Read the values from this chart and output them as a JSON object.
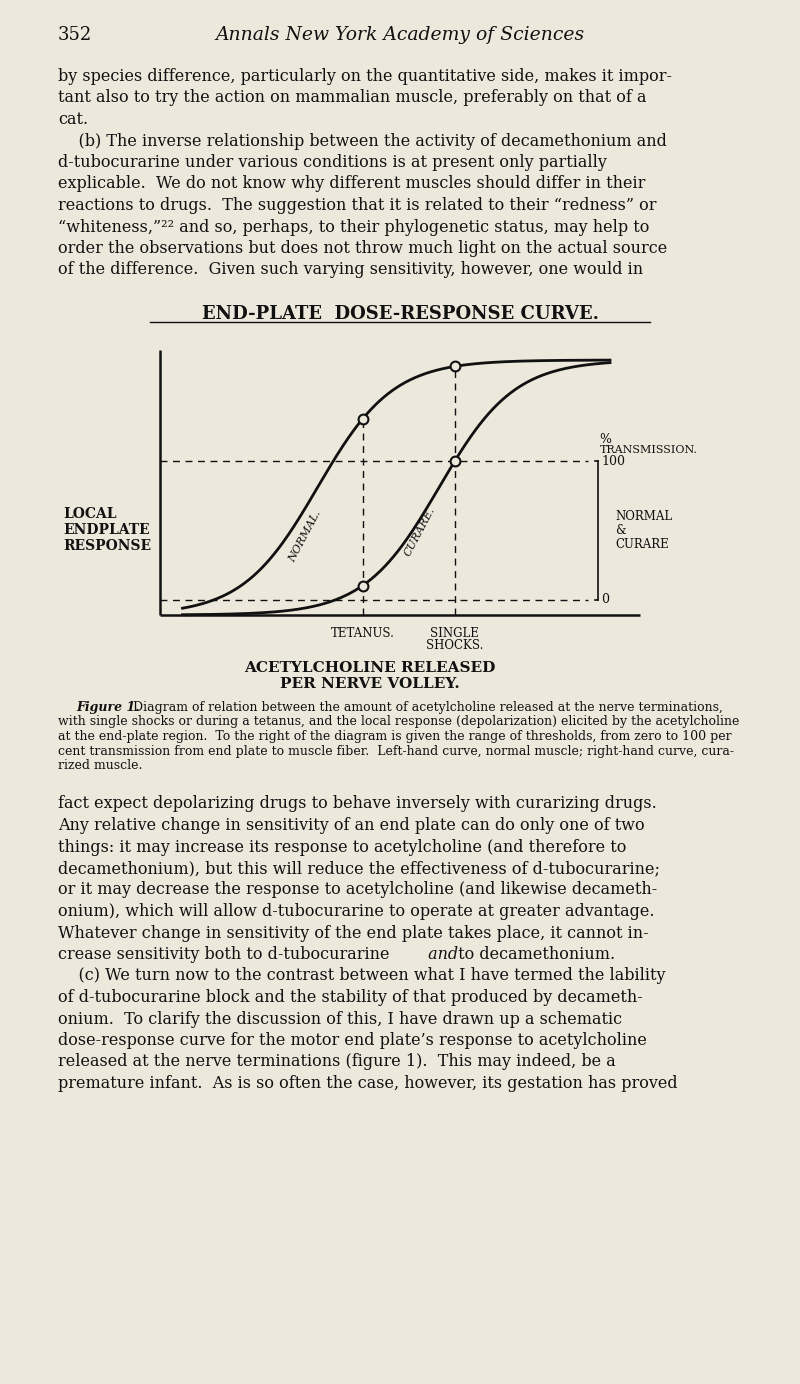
{
  "bg_color": "#ede8dc",
  "page_number": "352",
  "journal_title": "Annals New York Academy of Sciences",
  "text_color": "#111111",
  "curve_color": "#111111",
  "top_lines": [
    "by species difference, particularly on the quantitative side, makes it impor-",
    "tant also to try the action on mammalian muscle, preferably on that of a",
    "cat.",
    "    (b) The inverse relationship between the activity of decamethonium and",
    "d-tubocurarine under various conditions is at present only partially",
    "explicable.  We do not know why different muscles should differ in their",
    "reactions to drugs.  The suggestion that it is related to their “redness” or",
    "“whiteness,”²² and so, perhaps, to their phylogenetic status, may help to",
    "order the observations but does not throw much light on the actual source",
    "of the difference.  Given such varying sensitivity, however, one would in"
  ],
  "bottom_lines": [
    "fact expect depolarizing drugs to behave inversely with curarizing drugs.",
    "Any relative change in sensitivity of an end plate can do only one of two",
    "things: it may increase its response to acetylcholine (and therefore to",
    "decamethonium), but this will reduce the effectiveness of d-tubocurarine;",
    "or it may decrease the response to acetylcholine (and likewise decameth-",
    "onium), which will allow d-tubocurarine to operate at greater advantage.",
    "Whatever change in sensitivity of the end plate takes place, it cannot in-",
    "crease sensitivity both to d-tubocurarine",
    "    (c) We turn now to the contrast between what I have termed the lability",
    "of d-tubocurarine block and the stability of that produced by decameth-",
    "onium.  To clarify the discussion of this, I have drawn up a schematic",
    "dose-response curve for the motor end plate’s response to acetylcholine",
    "released at the nerve terminations (figure 1).  This may indeed, be a",
    "premature infant.  As is so often the case, however, its gestation has proved"
  ],
  "caption_lines": [
    "with single shocks or during a tetanus, and the local response (depolarization) elicited by the acetylcholine",
    "at the end-plate region.  To the right of the diagram is given the range of thresholds, from zero to 100 per",
    "cent transmission from end plate to muscle fiber.  Left-hand curve, normal muscle; right-hand curve, cura-",
    "rized muscle."
  ],
  "fig_title": "END-PLATE  DOSE-RESPONSE CURVE.",
  "xlabel1": "ACETYLCHOLINE RELEASED",
  "xlabel2": "PER NERVE VOLLEY.",
  "tetanus_label": "TETANUS.",
  "single1": "SINGLE",
  "single2": "SHOCKS.",
  "pct": "%",
  "transmission": "TRANSMISSION.",
  "right_100": "100",
  "right_0": "0",
  "right_normal": "NORMAL",
  "right_amp": "&",
  "right_curare": "CURARE",
  "normal_curve_label": "NORMAL.",
  "curare_curve_label": "CURARE."
}
